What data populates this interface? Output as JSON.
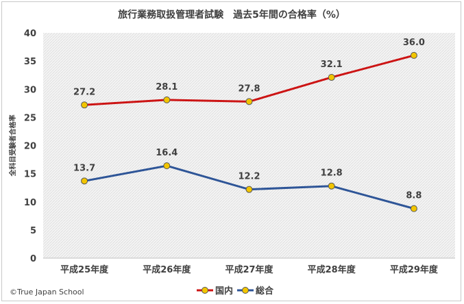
{
  "chart_data": {
    "type": "line",
    "title": "旅行業務取扱管理者試験　過去5年間の合格率（%）",
    "ylabel": "全科目受験者合格率",
    "xlabel": "",
    "categories": [
      "平成25年度",
      "平成26年度",
      "平成27年度",
      "平成28年度",
      "平成29年度"
    ],
    "ylim": [
      0,
      40
    ],
    "yticks": [
      0,
      5,
      10,
      15,
      20,
      25,
      30,
      35,
      40
    ],
    "grid": false,
    "legend_position": "bottom",
    "series": [
      {
        "name": "国内",
        "color": "#cc1414",
        "values": [
          27.2,
          28.1,
          27.8,
          32.1,
          36.0
        ],
        "labels": [
          "27.2",
          "28.1",
          "27.8",
          "32.1",
          "36.0"
        ]
      },
      {
        "name": "総合",
        "color": "#2e5597",
        "values": [
          13.7,
          16.4,
          12.2,
          12.8,
          8.8
        ],
        "labels": [
          "13.7",
          "16.4",
          "12.2",
          "12.8",
          "8.8"
        ]
      }
    ],
    "marker_fill": "#f2c500",
    "marker_stroke": "#555555"
  },
  "copyright": "©True Japan School"
}
